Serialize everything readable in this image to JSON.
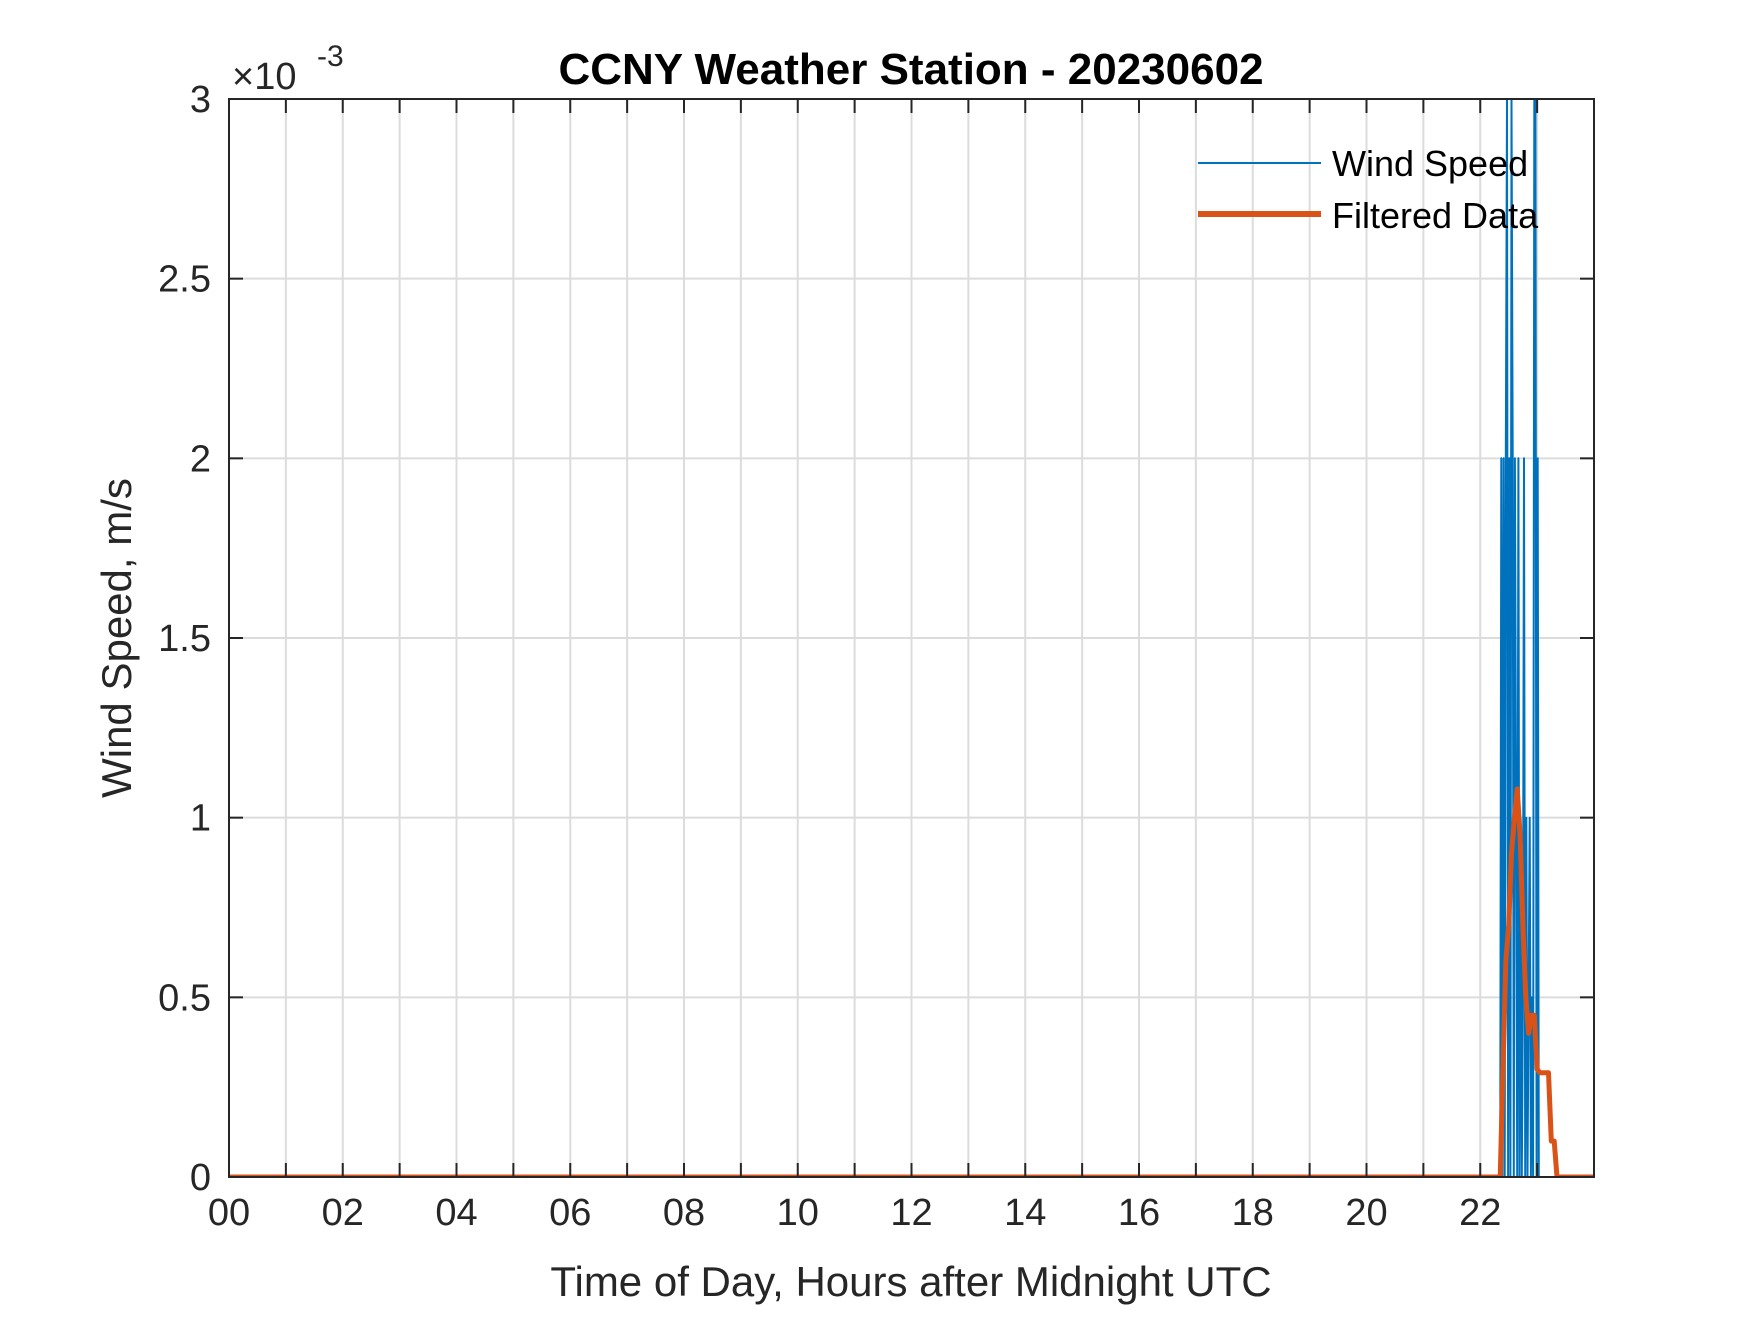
{
  "chart_data": {
    "type": "line",
    "title": "CCNY Weather Station - 20230602",
    "xlabel": "Time of Day, Hours after Midnight UTC",
    "ylabel": "Wind Speed, m/s",
    "xlim": [
      0,
      24
    ],
    "ylim": [
      0,
      0.003
    ],
    "y_exponent_label": "×10",
    "y_exponent_power": "-3",
    "x_ticks": [
      0,
      2,
      4,
      6,
      8,
      10,
      12,
      14,
      16,
      18,
      20,
      22
    ],
    "x_tick_labels": [
      "00",
      "02",
      "04",
      "06",
      "08",
      "10",
      "12",
      "14",
      "16",
      "18",
      "20",
      "22"
    ],
    "x_minor_grid": [
      1,
      3,
      5,
      7,
      9,
      11,
      13,
      15,
      17,
      19,
      21,
      23
    ],
    "y_ticks": [
      0,
      0.0005,
      0.001,
      0.0015,
      0.002,
      0.0025,
      0.003
    ],
    "y_tick_labels": [
      "0",
      "0.5",
      "1",
      "1.5",
      "2",
      "2.5",
      "3"
    ],
    "grid": true,
    "legend_position": "top-right",
    "series": [
      {
        "name": "Wind Speed",
        "color": "#0072BD",
        "x": [
          0,
          22.35,
          22.37,
          22.39,
          22.41,
          22.43,
          22.45,
          22.47,
          22.49,
          22.51,
          22.53,
          22.55,
          22.57,
          22.59,
          22.61,
          22.63,
          22.65,
          22.67,
          22.69,
          22.71,
          22.73,
          22.75,
          22.77,
          22.79,
          22.81,
          22.83,
          22.85,
          22.87,
          22.89,
          22.91,
          22.93,
          22.95,
          22.97,
          22.99,
          23.01,
          23.03,
          23.05,
          23.1,
          23.99
        ],
        "y": [
          0,
          0,
          0.002,
          0,
          0.002,
          0,
          0.002,
          0.004,
          0,
          0.002,
          0,
          0.004,
          0.002,
          0,
          0.002,
          0.001,
          0,
          0.002,
          0,
          0.001,
          0,
          0.0005,
          0.002,
          0,
          0.001,
          0,
          0.0005,
          0.001,
          0,
          0.0005,
          0,
          0.003,
          0.004,
          0,
          0.002,
          0,
          0,
          0,
          0
        ]
      },
      {
        "name": "Filtered Data",
        "color": "#D95319",
        "x": [
          0,
          22.35,
          22.4,
          22.45,
          22.5,
          22.55,
          22.6,
          22.65,
          22.7,
          22.75,
          22.8,
          22.85,
          22.9,
          22.95,
          23.0,
          23.05,
          23.1,
          23.15,
          23.2,
          23.25,
          23.3,
          23.35,
          23.4,
          23.99
        ],
        "y": [
          0,
          0,
          0.0003,
          0.0006,
          0.0007,
          0.0009,
          0.001,
          0.00108,
          0.00095,
          0.0007,
          0.0005,
          0.0004,
          0.00045,
          0.00045,
          0.0003,
          0.00029,
          0.00029,
          0.00029,
          0.00029,
          0.0001,
          0.0001,
          0,
          0,
          0
        ]
      }
    ]
  }
}
